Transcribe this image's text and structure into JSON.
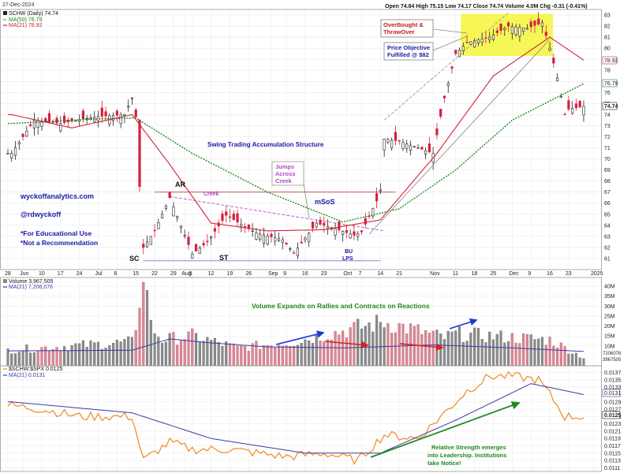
{
  "header": {
    "date": "27-Dec-2024",
    "symbol_line": "SCHW (Daily) 74.74",
    "ma50_line": "MA(50) 76.79",
    "ma21_line": "MA(21) 78.92",
    "ohlc_line": "Open 74.84  High 75.15  Low 74.17  Close 74.74  Volume 4.0M  Chg -0.31 (-0.41%)"
  },
  "annotations": {
    "overbought": "OverBought & ThrowOver",
    "price_objective": "Price Objective Fulfilled @ $82",
    "swing_title": "Swing Trading Accumulation Structure",
    "jumps": "Jumps Across Creek",
    "creek": "Creek",
    "msos": "mSoS",
    "ar": "AR",
    "sc": "SC",
    "st": "ST",
    "bu": "BU",
    "lps": "LPS",
    "site": "wyckoffanalytics.com",
    "handle": "@rdwyckoff",
    "edu": "*For Educaational Use",
    "not_rec": "*Not a Recommendation",
    "volume_note": "Volume Expands on Rallies and Contracts on Reactions",
    "rs_note": "Relative Strength emerges into Leadership. Institutions take Notice!"
  },
  "volume_panel": {
    "title": "Volume 3,967,505",
    "ma_line": "MA(21) 7,206,076",
    "y_ticks": [
      "40M",
      "35M",
      "30M",
      "25M",
      "20M",
      "15M",
      "10M"
    ],
    "last_labels": [
      "7206076",
      "3967505"
    ]
  },
  "rs_panel": {
    "title": "$SCHW:$SPX 0.0125",
    "ma_line": "MA(21) 0.0131",
    "y_ticks": [
      "0.0137",
      "0.0135",
      "0.0133",
      "0.0131",
      "0.0129",
      "0.0127",
      "0.0125",
      "0.0123",
      "0.0121",
      "0.0119",
      "0.0117",
      "0.0115",
      "0.0113",
      "0.0111"
    ],
    "last_labels": [
      "0.0131",
      "0.0125"
    ]
  },
  "price_axis": {
    "ticks": [
      "83",
      "82",
      "81",
      "80",
      "79",
      "78",
      "77",
      "76",
      "75",
      "74",
      "73",
      "72",
      "71",
      "70",
      "69",
      "68",
      "67",
      "66",
      "65",
      "64",
      "63",
      "62",
      "61"
    ],
    "last_labels": [
      "78.92",
      "76.79",
      "74.74"
    ]
  },
  "x_axis": {
    "labels": [
      "28",
      "Jun",
      "10",
      "17",
      "24",
      "Jul",
      "8",
      "15",
      "22",
      "29",
      "Aug",
      "5",
      "12",
      "19",
      "26",
      "Sep",
      "9",
      "16",
      "23",
      "Oct",
      "7",
      "14",
      "21",
      "Nov",
      "11",
      "18",
      "25",
      "Dec",
      "9",
      "16",
      "23",
      "2025"
    ]
  },
  "colors": {
    "up": "#222222",
    "down": "#d4203c",
    "ma21": "#d4203c",
    "ma50": "#1e8a1e",
    "rs_line": "#ee8822",
    "rs_ma": "#3a3aaa",
    "blue_text": "#1a1aa8",
    "green_text": "#1e8a1e",
    "purple_text": "#b048c8",
    "highlight": "#f5f53a"
  },
  "chart_data": {
    "type": "candlestick",
    "symbol": "SCHW",
    "timeframe": "Daily",
    "price_range": [
      60,
      83.5
    ],
    "volume_range_millions": [
      0,
      42
    ],
    "rs_range": [
      0.011,
      0.0138
    ],
    "price_anchors": [
      {
        "date": "2024-05-29",
        "close": 70.5
      },
      {
        "date": "2024-06-06",
        "close": 73.5
      },
      {
        "date": "2024-06-17",
        "close": 73.2
      },
      {
        "date": "2024-06-28",
        "close": 73.8
      },
      {
        "date": "2024-07-10",
        "close": 74.0
      },
      {
        "date": "2024-07-12",
        "close": 75.5
      },
      {
        "date": "2024-07-15",
        "close": 73.8
      },
      {
        "date": "2024-07-16",
        "close": 67.5
      },
      {
        "date": "2024-07-17",
        "close": 62.0
      },
      {
        "date": "2024-07-22",
        "close": 63.5
      },
      {
        "date": "2024-07-26",
        "close": 66.5
      },
      {
        "date": "2024-08-05",
        "close": 61.4
      },
      {
        "date": "2024-08-09",
        "close": 62.5
      },
      {
        "date": "2024-08-16",
        "close": 64.9
      },
      {
        "date": "2024-08-28",
        "close": 63.3
      },
      {
        "date": "2024-09-06",
        "close": 62.7
      },
      {
        "date": "2024-09-11",
        "close": 61.5
      },
      {
        "date": "2024-09-19",
        "close": 64.2
      },
      {
        "date": "2024-09-26",
        "close": 63.7
      },
      {
        "date": "2024-10-03",
        "close": 63.1
      },
      {
        "date": "2024-10-07",
        "close": 63.4
      },
      {
        "date": "2024-10-11",
        "close": 66.2
      },
      {
        "date": "2024-10-14",
        "close": 67.2
      },
      {
        "date": "2024-10-15",
        "close": 71.8
      },
      {
        "date": "2024-10-21",
        "close": 71.6
      },
      {
        "date": "2024-10-28",
        "close": 71.0
      },
      {
        "date": "2024-11-01",
        "close": 70.5
      },
      {
        "date": "2024-11-06",
        "close": 75.5
      },
      {
        "date": "2024-11-11",
        "close": 79.5
      },
      {
        "date": "2024-11-14",
        "close": 80.5
      },
      {
        "date": "2024-11-22",
        "close": 81.0
      },
      {
        "date": "2024-11-29",
        "close": 82.0
      },
      {
        "date": "2024-12-06",
        "close": 81.8
      },
      {
        "date": "2024-12-12",
        "close": 82.3
      },
      {
        "date": "2024-12-16",
        "close": 80.0
      },
      {
        "date": "2024-12-18",
        "close": 77.3
      },
      {
        "date": "2024-12-20",
        "close": 74.0
      },
      {
        "date": "2024-12-23",
        "close": 74.5
      },
      {
        "date": "2024-12-27",
        "close": 74.74
      }
    ],
    "ma21_anchors": [
      {
        "date": "2024-05-29",
        "value": 74.0
      },
      {
        "date": "2024-06-20",
        "value": 72.8
      },
      {
        "date": "2024-07-12",
        "value": 74.0
      },
      {
        "date": "2024-07-26",
        "value": 69.5
      },
      {
        "date": "2024-08-12",
        "value": 64.2
      },
      {
        "date": "2024-09-02",
        "value": 63.5
      },
      {
        "date": "2024-09-23",
        "value": 63.6
      },
      {
        "date": "2024-10-14",
        "value": 64.5
      },
      {
        "date": "2024-11-04",
        "value": 70.5
      },
      {
        "date": "2024-11-25",
        "value": 77.5
      },
      {
        "date": "2024-12-16",
        "value": 81.0
      },
      {
        "date": "2024-12-27",
        "value": 78.92
      }
    ],
    "ma50_anchors": [
      {
        "date": "2024-05-29",
        "value": 73.2
      },
      {
        "date": "2024-06-28",
        "value": 73.6
      },
      {
        "date": "2024-07-15",
        "value": 73.7
      },
      {
        "date": "2024-08-05",
        "value": 70.5
      },
      {
        "date": "2024-09-02",
        "value": 67.0
      },
      {
        "date": "2024-09-30",
        "value": 64.3
      },
      {
        "date": "2024-10-21",
        "value": 65.5
      },
      {
        "date": "2024-11-11",
        "value": 69.0
      },
      {
        "date": "2024-12-02",
        "value": 73.5
      },
      {
        "date": "2024-12-27",
        "value": 76.79
      }
    ],
    "volume_anchors_millions": [
      {
        "date": "2024-05-29",
        "value": 8
      },
      {
        "date": "2024-07-12",
        "value": 12
      },
      {
        "date": "2024-07-16",
        "value": 29
      },
      {
        "date": "2024-07-17",
        "value": 42
      },
      {
        "date": "2024-07-18",
        "value": 38
      },
      {
        "date": "2024-07-19",
        "value": 20
      },
      {
        "date": "2024-07-24",
        "value": 13
      },
      {
        "date": "2024-08-05",
        "value": 15
      },
      {
        "date": "2024-08-21",
        "value": 9
      },
      {
        "date": "2024-09-11",
        "value": 12
      },
      {
        "date": "2024-09-20",
        "value": 15
      },
      {
        "date": "2024-10-15",
        "value": 22
      },
      {
        "date": "2024-11-06",
        "value": 14
      },
      {
        "date": "2024-11-11",
        "value": 16
      },
      {
        "date": "2024-12-16",
        "value": 13
      },
      {
        "date": "2024-12-27",
        "value": 4
      }
    ],
    "volume_ma_anchors_millions": [
      {
        "date": "2024-05-29",
        "value": 7.5
      },
      {
        "date": "2024-07-12",
        "value": 7.8
      },
      {
        "date": "2024-07-26",
        "value": 13.5
      },
      {
        "date": "2024-08-12",
        "value": 11.5
      },
      {
        "date": "2024-09-02",
        "value": 9.5
      },
      {
        "date": "2024-10-01",
        "value": 9.0
      },
      {
        "date": "2024-11-01",
        "value": 10.5
      },
      {
        "date": "2024-12-02",
        "value": 9.0
      },
      {
        "date": "2024-12-27",
        "value": 7.2
      }
    ],
    "rs_anchors": [
      {
        "date": "2024-05-29",
        "value": 0.0128
      },
      {
        "date": "2024-06-10",
        "value": 0.0127
      },
      {
        "date": "2024-06-24",
        "value": 0.0125
      },
      {
        "date": "2024-07-12",
        "value": 0.0125
      },
      {
        "date": "2024-07-17",
        "value": 0.0113
      },
      {
        "date": "2024-07-26",
        "value": 0.0118
      },
      {
        "date": "2024-08-05",
        "value": 0.0116
      },
      {
        "date": "2024-08-19",
        "value": 0.0116
      },
      {
        "date": "2024-09-09",
        "value": 0.0114
      },
      {
        "date": "2024-09-23",
        "value": 0.0115
      },
      {
        "date": "2024-10-04",
        "value": 0.0113
      },
      {
        "date": "2024-10-15",
        "value": 0.012
      },
      {
        "date": "2024-10-28",
        "value": 0.0119
      },
      {
        "date": "2024-11-06",
        "value": 0.0126
      },
      {
        "date": "2024-11-14",
        "value": 0.0132
      },
      {
        "date": "2024-11-22",
        "value": 0.0136
      },
      {
        "date": "2024-12-02",
        "value": 0.0136
      },
      {
        "date": "2024-12-11",
        "value": 0.0135
      },
      {
        "date": "2024-12-16",
        "value": 0.0131
      },
      {
        "date": "2024-12-20",
        "value": 0.0125
      },
      {
        "date": "2024-12-27",
        "value": 0.0125
      }
    ],
    "rs_ma_anchors": [
      {
        "date": "2024-05-29",
        "value": 0.0129
      },
      {
        "date": "2024-07-12",
        "value": 0.0126
      },
      {
        "date": "2024-08-12",
        "value": 0.0119
      },
      {
        "date": "2024-09-16",
        "value": 0.0115
      },
      {
        "date": "2024-10-14",
        "value": 0.0115
      },
      {
        "date": "2024-11-11",
        "value": 0.0124
      },
      {
        "date": "2024-12-09",
        "value": 0.0134
      },
      {
        "date": "2024-12-27",
        "value": 0.0131
      }
    ],
    "creek_level": 67.0,
    "support_level": 60.8
  }
}
